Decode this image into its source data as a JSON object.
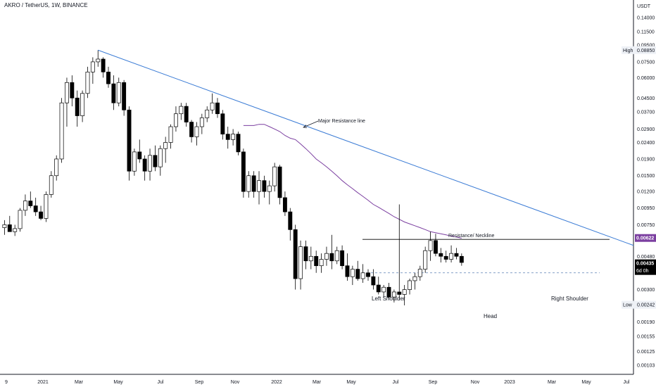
{
  "header": {
    "title": "AKRO / TetherUS, 1W, BINANCE"
  },
  "colors": {
    "up": "#ffffff",
    "down": "#000000",
    "wick": "#000000",
    "trendline": "#3a7bd5",
    "ma": "#7b3fa0",
    "neckline": "#000000",
    "support": "#5b7fb5",
    "axis_text": "#131722",
    "grid_line": "#d1d4dc",
    "price_badge": "#000000",
    "ma_badge": "#7b3fa0",
    "label_bg": "#eef1f6"
  },
  "chart_data": {
    "type": "candlestick",
    "y_scale": "log",
    "y_unit": "USDT",
    "y_ticks": [
      "0.14000",
      "0.11500",
      "0.09500",
      "0.07500",
      "0.06000",
      "0.04500",
      "0.03700",
      "0.02900",
      "0.02400",
      "0.01900",
      "0.01500",
      "0.01200",
      "0.00950",
      "0.00750",
      "0.00480",
      "0.00300",
      "0.00190",
      "0.00155",
      "0.00125",
      "0.00103"
    ],
    "x_ticks": [
      "9",
      "2021",
      "Mar",
      "May",
      "Jul",
      "Sep",
      "Nov",
      "2022",
      "Mar",
      "May",
      "Jul",
      "Sep",
      "Nov",
      "2023",
      "Mar",
      "May",
      "Jul"
    ],
    "markers": [
      {
        "label": "High",
        "value": "0.08850"
      },
      {
        "label": "Low",
        "value": "0.00242"
      }
    ],
    "badges": [
      {
        "value": "0.00622",
        "kind": "ma"
      },
      {
        "value": "0.00435",
        "sub": "6d 0h",
        "kind": "price"
      }
    ],
    "annotations": {
      "resistance_line": "Major Resistance line",
      "neckline": "Resistance/ Neckline",
      "left_shoulder": "Left Shoulder",
      "head": "Head",
      "right_shoulder": "Right Shoulder"
    },
    "levels": {
      "neckline": 0.0061,
      "support": 0.0038
    },
    "candles": [
      [
        0.0072,
        0.008,
        0.0065,
        0.0075
      ],
      [
        0.0075,
        0.0085,
        0.007,
        0.0068
      ],
      [
        0.0068,
        0.0075,
        0.0064,
        0.0071
      ],
      [
        0.0071,
        0.0095,
        0.0068,
        0.0092
      ],
      [
        0.0092,
        0.0115,
        0.0085,
        0.0105
      ],
      [
        0.0105,
        0.012,
        0.0095,
        0.0098
      ],
      [
        0.0098,
        0.011,
        0.0085,
        0.009
      ],
      [
        0.009,
        0.0098,
        0.008,
        0.0082
      ],
      [
        0.0082,
        0.012,
        0.0078,
        0.0115
      ],
      [
        0.0115,
        0.016,
        0.011,
        0.015
      ],
      [
        0.015,
        0.02,
        0.014,
        0.019
      ],
      [
        0.019,
        0.045,
        0.018,
        0.042
      ],
      [
        0.042,
        0.06,
        0.03,
        0.056
      ],
      [
        0.056,
        0.062,
        0.04,
        0.045
      ],
      [
        0.045,
        0.05,
        0.03,
        0.035
      ],
      [
        0.035,
        0.05,
        0.032,
        0.048
      ],
      [
        0.048,
        0.07,
        0.045,
        0.065
      ],
      [
        0.065,
        0.08,
        0.055,
        0.075
      ],
      [
        0.075,
        0.0885,
        0.07,
        0.078
      ],
      [
        0.078,
        0.08,
        0.06,
        0.065
      ],
      [
        0.065,
        0.07,
        0.052,
        0.055
      ],
      [
        0.055,
        0.062,
        0.038,
        0.042
      ],
      [
        0.042,
        0.06,
        0.04,
        0.056
      ],
      [
        0.056,
        0.058,
        0.035,
        0.038
      ],
      [
        0.038,
        0.04,
        0.014,
        0.016
      ],
      [
        0.016,
        0.022,
        0.015,
        0.021
      ],
      [
        0.021,
        0.025,
        0.018,
        0.019
      ],
      [
        0.019,
        0.02,
        0.014,
        0.016
      ],
      [
        0.016,
        0.022,
        0.014,
        0.02
      ],
      [
        0.02,
        0.023,
        0.016,
        0.017
      ],
      [
        0.017,
        0.023,
        0.015,
        0.022
      ],
      [
        0.022,
        0.026,
        0.018,
        0.024
      ],
      [
        0.024,
        0.031,
        0.022,
        0.03
      ],
      [
        0.03,
        0.04,
        0.028,
        0.036
      ],
      [
        0.036,
        0.042,
        0.033,
        0.04
      ],
      [
        0.04,
        0.042,
        0.03,
        0.032
      ],
      [
        0.032,
        0.033,
        0.024,
        0.026
      ],
      [
        0.026,
        0.032,
        0.023,
        0.03
      ],
      [
        0.03,
        0.036,
        0.027,
        0.034
      ],
      [
        0.034,
        0.04,
        0.032,
        0.038
      ],
      [
        0.038,
        0.048,
        0.036,
        0.042
      ],
      [
        0.042,
        0.045,
        0.034,
        0.036
      ],
      [
        0.036,
        0.038,
        0.025,
        0.027
      ],
      [
        0.027,
        0.03,
        0.022,
        0.025
      ],
      [
        0.025,
        0.029,
        0.023,
        0.027
      ],
      [
        0.027,
        0.028,
        0.02,
        0.021
      ],
      [
        0.021,
        0.022,
        0.011,
        0.012
      ],
      [
        0.012,
        0.016,
        0.011,
        0.015
      ],
      [
        0.015,
        0.016,
        0.011,
        0.012
      ],
      [
        0.012,
        0.016,
        0.01,
        0.014
      ],
      [
        0.014,
        0.015,
        0.011,
        0.012
      ],
      [
        0.012,
        0.014,
        0.01,
        0.013
      ],
      [
        0.013,
        0.018,
        0.012,
        0.017
      ],
      [
        0.017,
        0.0175,
        0.01,
        0.011
      ],
      [
        0.011,
        0.012,
        0.0085,
        0.009
      ],
      [
        0.009,
        0.0095,
        0.006,
        0.007
      ],
      [
        0.007,
        0.0075,
        0.003,
        0.0035
      ],
      [
        0.0035,
        0.006,
        0.003,
        0.0055
      ],
      [
        0.0055,
        0.006,
        0.004,
        0.0045
      ],
      [
        0.0045,
        0.0055,
        0.004,
        0.0048
      ],
      [
        0.0048,
        0.0052,
        0.0038,
        0.0042
      ],
      [
        0.0042,
        0.005,
        0.0038,
        0.0046
      ],
      [
        0.0046,
        0.0055,
        0.0042,
        0.005
      ],
      [
        0.005,
        0.0065,
        0.004,
        0.0045
      ],
      [
        0.0045,
        0.0055,
        0.0043,
        0.0052
      ],
      [
        0.0052,
        0.0056,
        0.004,
        0.0042
      ],
      [
        0.0042,
        0.005,
        0.0034,
        0.0036
      ],
      [
        0.0036,
        0.0042,
        0.0032,
        0.004
      ],
      [
        0.004,
        0.0045,
        0.0034,
        0.0035
      ],
      [
        0.0035,
        0.0043,
        0.0033,
        0.0038
      ],
      [
        0.0038,
        0.004,
        0.0034,
        0.0036
      ],
      [
        0.0036,
        0.004,
        0.003,
        0.0032
      ],
      [
        0.0032,
        0.0036,
        0.0028,
        0.0029
      ],
      [
        0.0029,
        0.0032,
        0.0027,
        0.0031
      ],
      [
        0.0031,
        0.0033,
        0.0026,
        0.0027
      ],
      [
        0.0027,
        0.003,
        0.0025,
        0.0029
      ],
      [
        0.0029,
        0.01,
        0.0026,
        0.0028
      ],
      [
        0.0028,
        0.0032,
        0.0024,
        0.003
      ],
      [
        0.003,
        0.0035,
        0.0028,
        0.0034
      ],
      [
        0.0034,
        0.0038,
        0.003,
        0.0036
      ],
      [
        0.0036,
        0.0042,
        0.0034,
        0.004
      ],
      [
        0.004,
        0.0055,
        0.0038,
        0.0052
      ],
      [
        0.0052,
        0.0068,
        0.0045,
        0.006
      ],
      [
        0.006,
        0.0066,
        0.0048,
        0.005
      ],
      [
        0.005,
        0.0054,
        0.0044,
        0.0048
      ],
      [
        0.0048,
        0.0052,
        0.0044,
        0.0046
      ],
      [
        0.0046,
        0.0056,
        0.0044,
        0.005
      ],
      [
        0.005,
        0.0054,
        0.0046,
        0.0048
      ],
      [
        0.0048,
        0.005,
        0.0042,
        0.0044
      ]
    ],
    "ma_values": [
      0.0305,
      0.0305,
      0.0305,
      0.031,
      0.031,
      0.03,
      0.029,
      0.028,
      0.0265,
      0.0255,
      0.025,
      0.0235,
      0.022,
      0.0205,
      0.019,
      0.018,
      0.017,
      0.016,
      0.015,
      0.014,
      0.0132,
      0.0125,
      0.0118,
      0.0112,
      0.0106,
      0.01,
      0.0096,
      0.0092,
      0.0088,
      0.0084,
      0.0081,
      0.0078,
      0.0076,
      0.0074,
      0.0072,
      0.007,
      0.0068,
      0.0067,
      0.0066,
      0.0065,
      0.0064,
      0.0063,
      0.0062
    ],
    "ma_start_index": 46,
    "trendline": {
      "start_index": 18,
      "start_value": 0.0885,
      "end_value": 0.0056
    }
  }
}
